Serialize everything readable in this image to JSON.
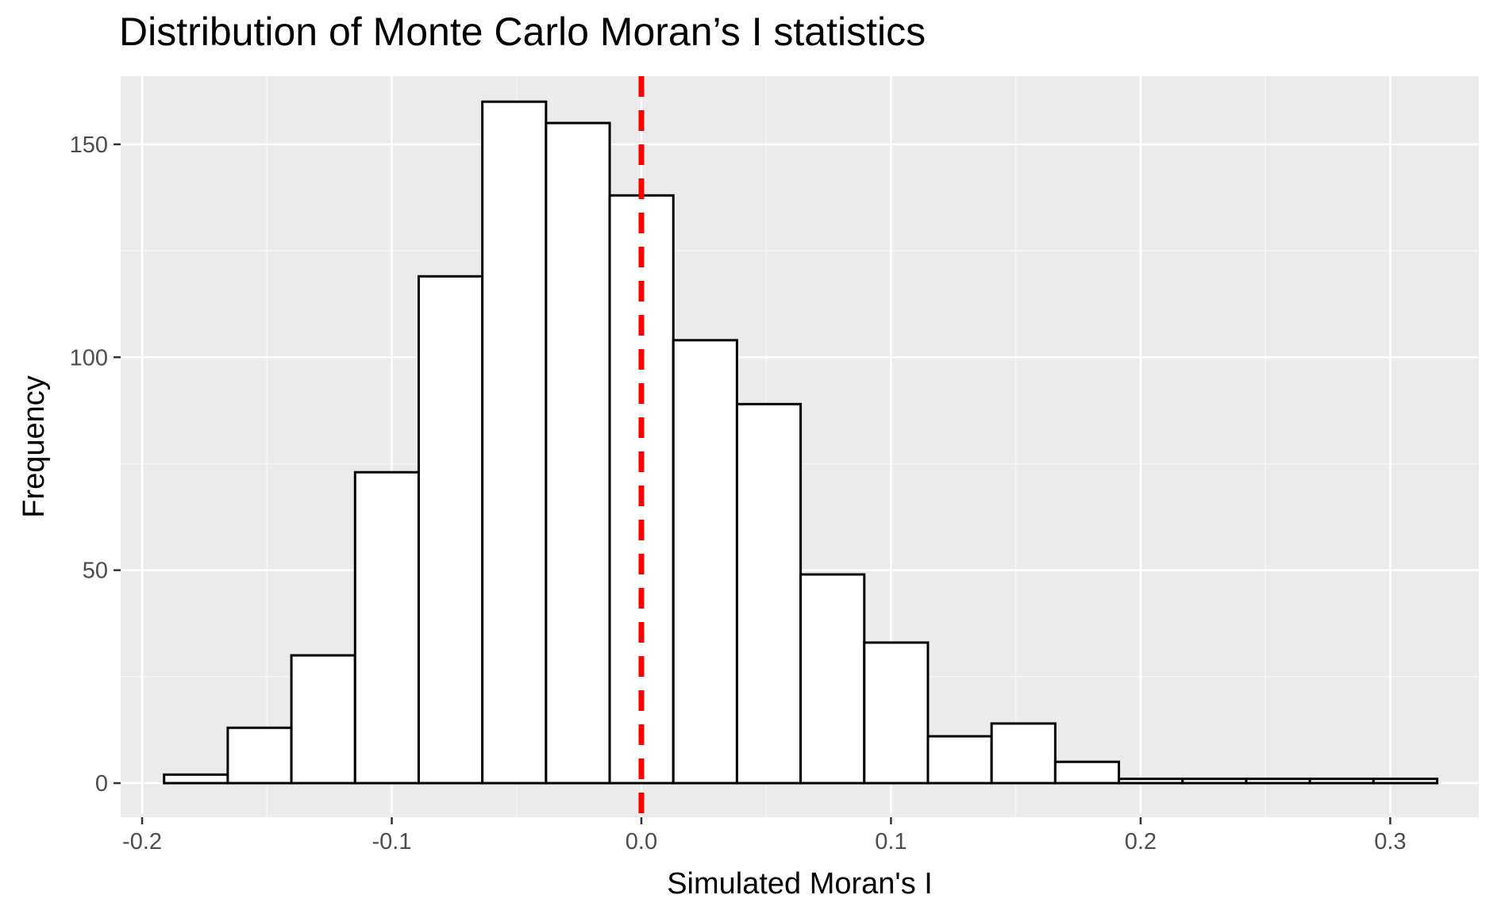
{
  "chart_data": {
    "type": "bar",
    "title": "Distribution of Monte Carlo Moran’s I statistics",
    "xlabel": "Simulated Moran's I",
    "ylabel": "Frequency",
    "xlim": [
      -0.2086,
      0.3355
    ],
    "ylim": [
      -8,
      166
    ],
    "x_ticks": [
      -0.2,
      -0.1,
      0.0,
      0.1,
      0.2,
      0.3
    ],
    "x_tick_labels": [
      "-0.2",
      "-0.1",
      "0.0",
      "0.1",
      "0.2",
      "0.3"
    ],
    "y_ticks": [
      0,
      50,
      100,
      150
    ],
    "y_tick_labels": [
      "0",
      "50",
      "100",
      "150"
    ],
    "grid": true,
    "bins": [
      {
        "x_start": -0.1912,
        "x_end": -0.1657,
        "count": 2
      },
      {
        "x_start": -0.1657,
        "x_end": -0.1402,
        "count": 13
      },
      {
        "x_start": -0.1402,
        "x_end": -0.1147,
        "count": 30
      },
      {
        "x_start": -0.1147,
        "x_end": -0.0892,
        "count": 73
      },
      {
        "x_start": -0.0892,
        "x_end": -0.0637,
        "count": 119
      },
      {
        "x_start": -0.0637,
        "x_end": -0.0382,
        "count": 160
      },
      {
        "x_start": -0.0382,
        "x_end": -0.0127,
        "count": 155
      },
      {
        "x_start": -0.0127,
        "x_end": 0.0128,
        "count": 138
      },
      {
        "x_start": 0.0128,
        "x_end": 0.0383,
        "count": 104
      },
      {
        "x_start": 0.0383,
        "x_end": 0.0638,
        "count": 89
      },
      {
        "x_start": 0.0638,
        "x_end": 0.0893,
        "count": 49
      },
      {
        "x_start": 0.0893,
        "x_end": 0.1148,
        "count": 33
      },
      {
        "x_start": 0.1148,
        "x_end": 0.1403,
        "count": 11
      },
      {
        "x_start": 0.1403,
        "x_end": 0.1658,
        "count": 14
      },
      {
        "x_start": 0.1658,
        "x_end": 0.1913,
        "count": 5
      },
      {
        "x_start": 0.1913,
        "x_end": 0.2168,
        "count": 1
      },
      {
        "x_start": 0.2168,
        "x_end": 0.2423,
        "count": 1
      },
      {
        "x_start": 0.2423,
        "x_end": 0.2678,
        "count": 1
      },
      {
        "x_start": 0.2678,
        "x_end": 0.2933,
        "count": 1
      },
      {
        "x_start": 0.2933,
        "x_end": 0.3188,
        "count": 1
      }
    ],
    "reference_line": {
      "x": 0.0,
      "style": "dashed",
      "color": "#ff0000"
    },
    "colors": {
      "panel_background": "#ebebeb",
      "grid_major": "#ffffff",
      "grid_minor": "#f5f5f5",
      "bar_fill": "#ffffff",
      "bar_stroke": "#000000"
    }
  }
}
